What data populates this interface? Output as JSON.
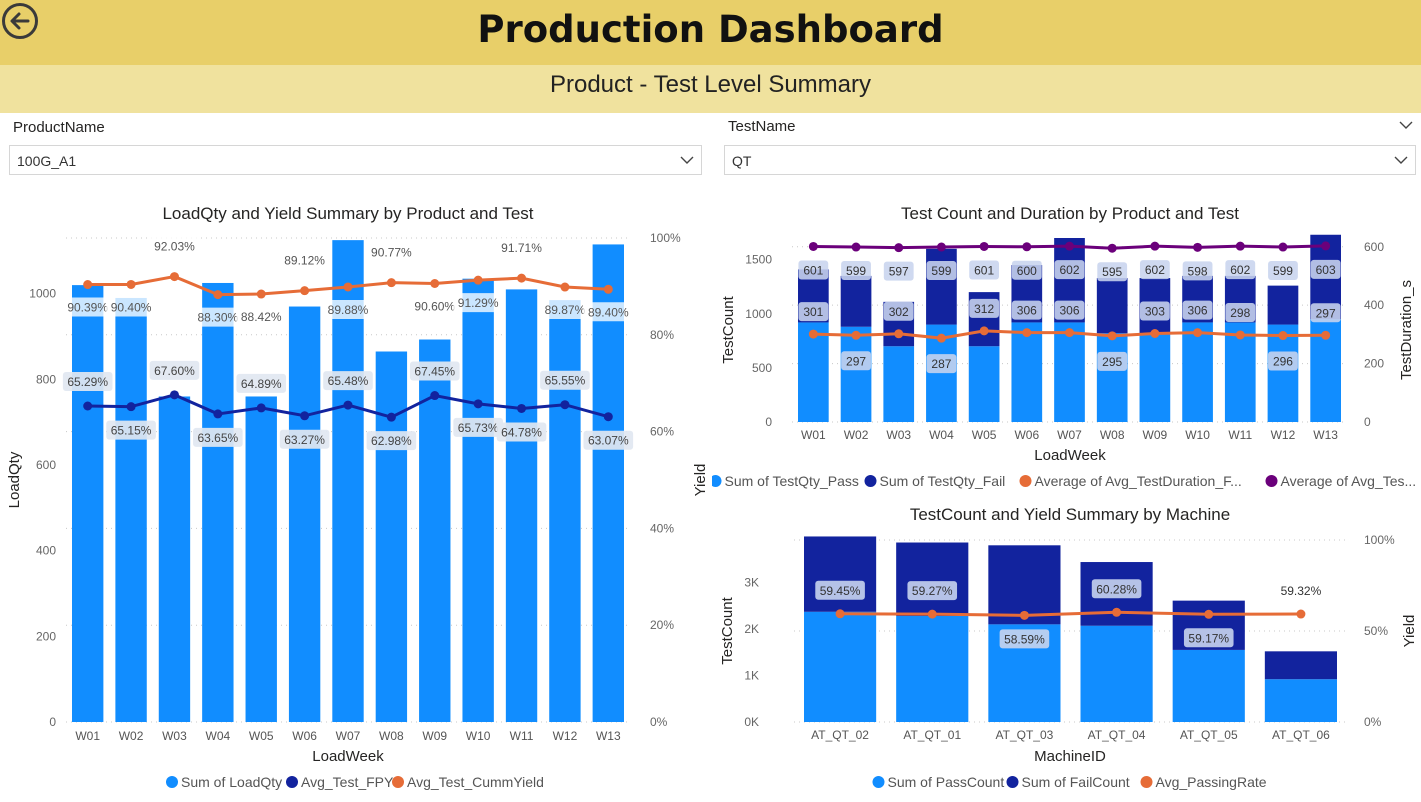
{
  "header": {
    "title": "Production Dashboard",
    "subtitle": "Product - Test Level Summary",
    "back_icon": "back-arrow-icon"
  },
  "slicers": {
    "product": {
      "label": "ProductName",
      "value": "100G_A1"
    },
    "test": {
      "label": "TestName",
      "value": "QT"
    }
  },
  "colors": {
    "header": "#e8cf69",
    "subheader": "#f0e29e",
    "light_blue": "#118dff",
    "dark_blue": "#12239e",
    "orange": "#e66c37",
    "purple": "#6b007b",
    "peach": "#f3b9a0"
  },
  "chart_data": [
    {
      "type": "bar",
      "title": "LoadQty and Yield Summary by Product and Test",
      "xlabel": "LoadWeek",
      "ylabel": "LoadQty",
      "y2label": "Yield",
      "categories": [
        "W01",
        "W02",
        "W03",
        "W04",
        "W05",
        "W06",
        "W07",
        "W08",
        "W09",
        "W10",
        "W11",
        "W12",
        "W13"
      ],
      "ylim": [
        0,
        1130
      ],
      "y_ticks": [
        "0",
        "200",
        "400",
        "600",
        "800",
        "1000"
      ],
      "y2lim": [
        0,
        1
      ],
      "y2_ticks": [
        "0%",
        "20%",
        "40%",
        "60%",
        "80%",
        "100%"
      ],
      "series": [
        {
          "name": "Sum of LoadQty",
          "kind": "bar",
          "values": [
            1020,
            990,
            760,
            1025,
            760,
            970,
            1125,
            865,
            893,
            1035,
            1010,
            985,
            1115
          ]
        },
        {
          "name": "Avg_Test_FPY",
          "kind": "line",
          "values": [
            0.6529,
            0.6515,
            0.676,
            0.6365,
            0.6489,
            0.6327,
            0.6548,
            0.6298,
            0.6745,
            0.6573,
            0.6478,
            0.6555,
            0.6307
          ],
          "labels": [
            "65.29%",
            "65.15%",
            "67.60%",
            "63.65%",
            "64.89%",
            "63.27%",
            "65.48%",
            "62.98%",
            "67.45%",
            "65.73%",
            "64.78%",
            "65.55%",
            "63.07%"
          ]
        },
        {
          "name": "Avg_Test_CummYield",
          "kind": "line",
          "values": [
            0.9039,
            0.904,
            0.9203,
            0.883,
            0.8842,
            0.8912,
            0.8988,
            0.9077,
            0.906,
            0.9129,
            0.9171,
            0.8987,
            0.894
          ],
          "labels": [
            "90.39%",
            "90.40%",
            "92.03%",
            "88.30%",
            "88.42%",
            "89.12%",
            "89.88%",
            "90.77%",
            "90.60%",
            "91.29%",
            "91.71%",
            "89.87%",
            "89.40%"
          ]
        }
      ],
      "legend": "bottom"
    },
    {
      "type": "bar",
      "title": "Test Count and Duration by Product and Test",
      "xlabel": "LoadWeek",
      "ylabel": "TestCount",
      "y2label": "TestDuration_s",
      "categories": [
        "W01",
        "W02",
        "W03",
        "W04",
        "W05",
        "W06",
        "W07",
        "W08",
        "W09",
        "W10",
        "W11",
        "W12",
        "W13"
      ],
      "ylim": [
        0,
        1700
      ],
      "y_ticks": [
        "0",
        "500",
        "1000",
        "1500"
      ],
      "y2lim": [
        0,
        630
      ],
      "y2_ticks": [
        "0",
        "200",
        "400",
        "600"
      ],
      "series": [
        {
          "name": "Sum of TestQty_Pass",
          "kind": "bar",
          "values": [
            920,
            880,
            700,
            900,
            700,
            920,
            920,
            820,
            820,
            920,
            920,
            900,
            950
          ]
        },
        {
          "name": "Sum of TestQty_Fail",
          "kind": "bar",
          "values": [
            490,
            470,
            410,
            700,
            500,
            530,
            780,
            510,
            510,
            430,
            430,
            360,
            780
          ]
        },
        {
          "name": "Average of Avg_TestDuration_F...",
          "kind": "line",
          "values": [
            301,
            297,
            302,
            287,
            312,
            306,
            306,
            295,
            303,
            306,
            298,
            296,
            297
          ],
          "labels": [
            "301",
            "297",
            "302",
            "287",
            "312",
            "306",
            "306",
            "295",
            "303",
            "306",
            "298",
            "296",
            "297"
          ]
        },
        {
          "name": "Average of Avg_Tes...",
          "kind": "line",
          "values": [
            601,
            599,
            597,
            599,
            601,
            600,
            602,
            595,
            602,
            598,
            602,
            599,
            603
          ],
          "labels": [
            "601",
            "599",
            "597",
            "599",
            "601",
            "600",
            "602",
            "595",
            "602",
            "598",
            "602",
            "599",
            "603"
          ]
        }
      ],
      "legend": "bottom"
    },
    {
      "type": "bar",
      "title": "TestCount and Yield Summary by Machine",
      "xlabel": "MachineID",
      "ylabel": "TestCount",
      "y2label": "Yield",
      "categories": [
        "AT_QT_02",
        "AT_QT_01",
        "AT_QT_03",
        "AT_QT_04",
        "AT_QT_05",
        "AT_QT_06"
      ],
      "ylim": [
        0,
        4000
      ],
      "y_ticks": [
        "0K",
        "1K",
        "2K",
        "3K"
      ],
      "y2lim": [
        0,
        1
      ],
      "y2_ticks": [
        "0%",
        "50%",
        "100%"
      ],
      "series": [
        {
          "name": "Sum of PassCount",
          "kind": "bar",
          "values": [
            2370,
            2280,
            2100,
            2070,
            1550,
            920
          ]
        },
        {
          "name": "Sum of FailCount",
          "kind": "bar",
          "values": [
            1620,
            1580,
            1700,
            1370,
            1060,
            600
          ]
        },
        {
          "name": "Avg_PassingRate",
          "kind": "line",
          "values": [
            0.5945,
            0.5927,
            0.5859,
            0.6028,
            0.5917,
            0.5932
          ],
          "labels": [
            "59.45%",
            "59.27%",
            "58.59%",
            "60.28%",
            "59.17%",
            "59.32%"
          ]
        }
      ],
      "legend": "bottom"
    }
  ]
}
